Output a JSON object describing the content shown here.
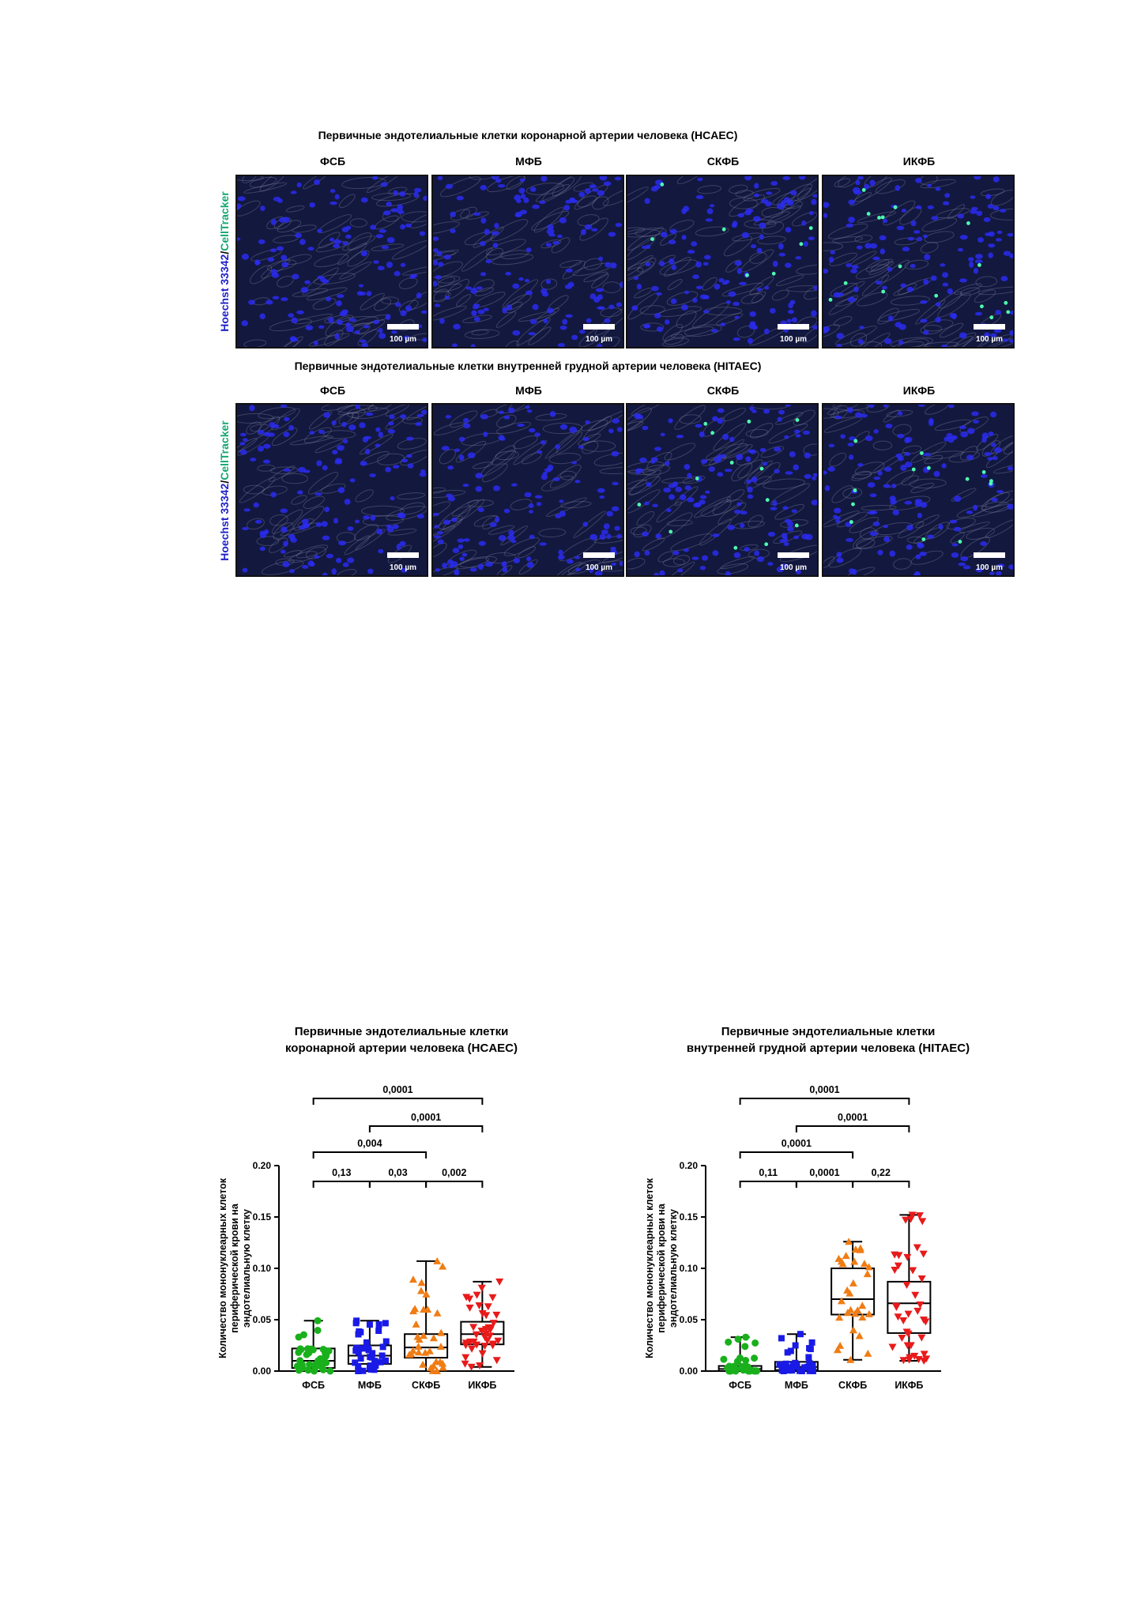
{
  "micrographs": {
    "hcaec": {
      "title": "Первичные эндотелиальные клетки коронарной артерии человека (HCAEC)",
      "columns": [
        "ФСБ",
        "МФБ",
        "СКФБ",
        "ИКФБ"
      ],
      "green_cells_relative": [
        0,
        0,
        0.45,
        1
      ],
      "scale_label": "100 µm"
    },
    "hitaec": {
      "title": "Первичные эндотелиальные клетки внутренней грудной артерии человека (HITAEC)",
      "columns": [
        "ФСБ",
        "МФБ",
        "СКФБ",
        "ИКФБ"
      ],
      "green_cells_relative": [
        0,
        0,
        0.8,
        0.8
      ],
      "scale_label": "100 µm"
    },
    "stain_label": {
      "part1": "Hoechst 33342",
      "separator": "/",
      "part2": "CellTracker",
      "part1_color": "#1f22c8",
      "part2_color": "#14a870"
    }
  },
  "chart_data": [
    {
      "type": "box",
      "title_lines": [
        "Первичные эндотелиальные клетки",
        "коронарной артерии человека (HCAEC)"
      ],
      "ylabel_lines": [
        "Количество мононуклеарных клеток",
        "периферической крови на",
        "эндотелиальную клетку"
      ],
      "categories": [
        "ФСБ",
        "МФБ",
        "СКФБ",
        "ИКФБ"
      ],
      "colors": [
        "#19b01c",
        "#1a1ae6",
        "#f07c14",
        "#e81a1a"
      ],
      "markers": [
        "circle",
        "square",
        "triangle-up",
        "triangle-down"
      ],
      "ylim": [
        0,
        0.2
      ],
      "yticks": [
        "0.00",
        "0.05",
        "0.10",
        "0.15",
        "0.20"
      ],
      "boxes": [
        {
          "min": 0.0,
          "q1": 0.003,
          "median": 0.01,
          "q3": 0.022,
          "max": 0.049
        },
        {
          "min": 0.0,
          "q1": 0.007,
          "median": 0.015,
          "q3": 0.025,
          "max": 0.049
        },
        {
          "min": 0.0,
          "q1": 0.013,
          "median": 0.023,
          "q3": 0.036,
          "max": 0.107
        },
        {
          "min": 0.004,
          "q1": 0.026,
          "median": 0.036,
          "q3": 0.048,
          "max": 0.087
        }
      ],
      "points_per_group": [
        38,
        38,
        34,
        40
      ],
      "comparisons": [
        {
          "from": 0,
          "to": 3,
          "label": "0,0001"
        },
        {
          "from": 1,
          "to": 3,
          "label": "0,0001"
        },
        {
          "from": 0,
          "to": 2,
          "label": "0,004"
        },
        {
          "from": 0,
          "to": 1,
          "label": "0,13"
        },
        {
          "from": 1,
          "to": 2,
          "label": "0,03"
        },
        {
          "from": 2,
          "to": 3,
          "label": "0,002"
        }
      ]
    },
    {
      "type": "box",
      "title_lines": [
        "Первичные эндотелиальные клетки",
        "внутренней грудной артерии человека (HITAEC)"
      ],
      "ylabel_lines": [
        "Количество мононуклеарных клеток",
        "периферической крови на",
        "эндотелиальную клетку"
      ],
      "categories": [
        "ФСБ",
        "МФБ",
        "СКФБ",
        "ИКФБ"
      ],
      "colors": [
        "#19b01c",
        "#1a1ae6",
        "#f07c14",
        "#e81a1a"
      ],
      "markers": [
        "circle",
        "square",
        "triangle-up",
        "triangle-down"
      ],
      "ylim": [
        0,
        0.2
      ],
      "yticks": [
        "0.00",
        "0.05",
        "0.10",
        "0.15",
        "0.20"
      ],
      "boxes": [
        {
          "min": 0.0,
          "q1": 0.0,
          "median": 0.002,
          "q3": 0.005,
          "max": 0.033
        },
        {
          "min": 0.0,
          "q1": 0.001,
          "median": 0.004,
          "q3": 0.009,
          "max": 0.036
        },
        {
          "min": 0.011,
          "q1": 0.055,
          "median": 0.07,
          "q3": 0.1,
          "max": 0.126
        },
        {
          "min": 0.01,
          "q1": 0.037,
          "median": 0.066,
          "q3": 0.087,
          "max": 0.152
        }
      ],
      "points_per_group": [
        36,
        36,
        30,
        40
      ],
      "comparisons": [
        {
          "from": 0,
          "to": 3,
          "label": "0,0001"
        },
        {
          "from": 1,
          "to": 3,
          "label": "0,0001"
        },
        {
          "from": 0,
          "to": 2,
          "label": "0,0001"
        },
        {
          "from": 0,
          "to": 1,
          "label": "0,11"
        },
        {
          "from": 1,
          "to": 2,
          "label": "0,0001"
        },
        {
          "from": 2,
          "to": 3,
          "label": "0,22"
        }
      ]
    }
  ]
}
